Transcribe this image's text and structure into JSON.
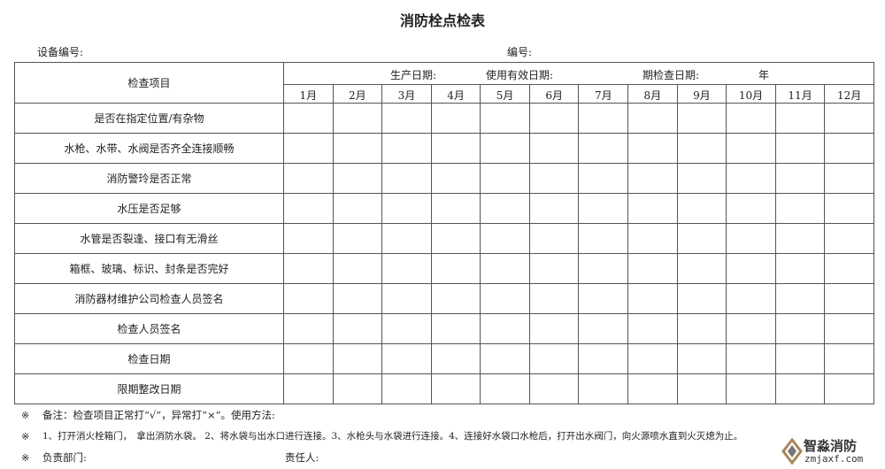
{
  "title": "消防栓点检表",
  "fields": {
    "device_number_label": "设备编号:",
    "number_label": "编号:"
  },
  "table": {
    "item_header": "检查项目",
    "date_header": {
      "production_date": "生产日期:",
      "valid_date": "使用有效日期:",
      "inspection_date": "期检查日期:",
      "year": "年"
    },
    "months": [
      "1月",
      "2月",
      "3月",
      "4月",
      "5月",
      "6月",
      "7月",
      "8月",
      "9月",
      "10月",
      "11月",
      "12月"
    ],
    "rows": [
      "是否在指定位置/有杂物",
      "水枪、水带、水阀是否齐全连接顺畅",
      "消防警玲是否正常",
      "水压是否足够",
      "水管是否裂逢、接口有无滑丝",
      "箱框、玻璃、标识、封条是否完好",
      "消防器材维护公司检查人员签名",
      "检查人员签名",
      "检查日期",
      "限期整改日期"
    ]
  },
  "notes": {
    "mark": "※",
    "remark": "备注：检查项目正常打“√”，异常打“×”。使用方法:",
    "method": "1、打开消火栓箱门，　拿出消防水袋。 2、将水袋与出水口进行连接。3、水枪头与水袋进行连接。4、连接好水袋口水枪后，打开出水阀门，向火源喷水直到火灭熄为止。",
    "department_label": "负责部门:",
    "person_label": "责任人:"
  },
  "watermark": {
    "name": "智淼消防",
    "url": "zmjaxf.com"
  }
}
